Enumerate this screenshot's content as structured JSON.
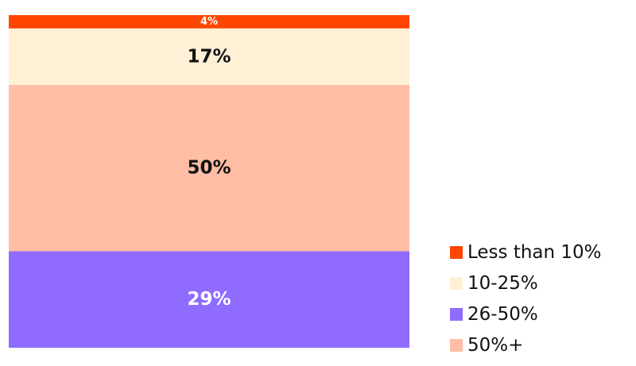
{
  "chart_data": {
    "type": "stacked-bar",
    "series": [
      {
        "name": "Less than 10%",
        "color": "#ff4500",
        "values": [
          4
        ],
        "value_labels": [
          "4%"
        ]
      },
      {
        "name": "10-25%",
        "color": "#fff0d6",
        "values": [
          17
        ],
        "value_labels": [
          "17%"
        ]
      },
      {
        "name": "26-50%",
        "color": "#8f6bff",
        "values": [
          29
        ],
        "value_labels": [
          "29%"
        ]
      },
      {
        "name": "50%+",
        "color": "#ffbda6",
        "values": [
          50
        ],
        "value_labels": [
          "50%"
        ]
      }
    ]
  }
}
